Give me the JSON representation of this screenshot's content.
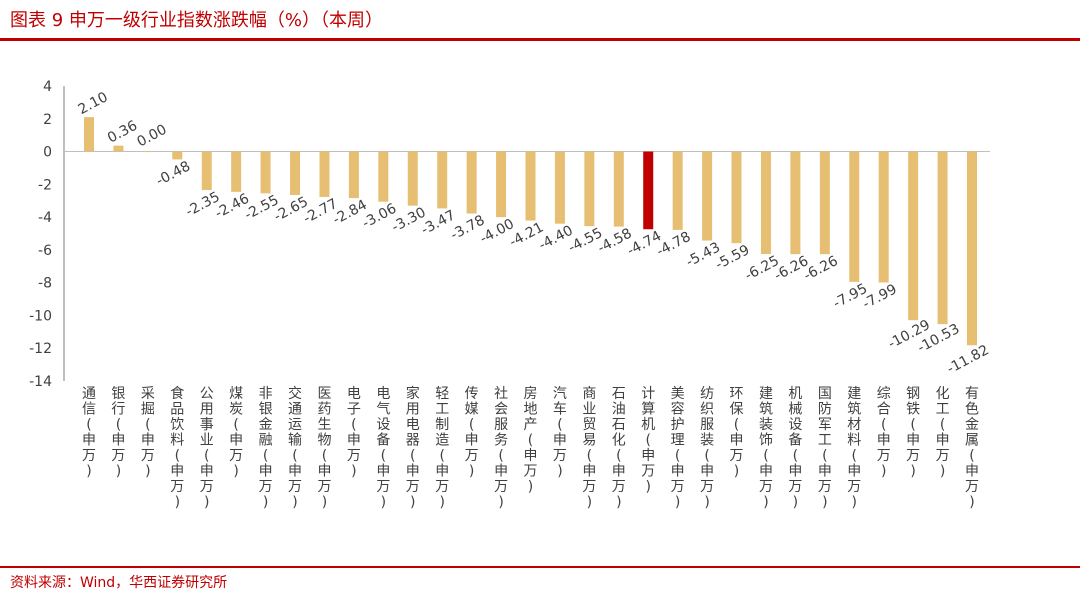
{
  "header": {
    "title": "图表 9 申万一级行业指数涨跌幅（%）（本周）"
  },
  "footer": {
    "source": "资料来源：Wind，华西证券研究所"
  },
  "colors": {
    "accent": "#c00000",
    "bar": "#e6bf73",
    "highlight": "#c00000",
    "axis": "#7f7f7f",
    "text": "#404040"
  },
  "chart_data": {
    "type": "bar",
    "title": "",
    "xlabel": "",
    "ylabel": "",
    "ylim": [
      -14,
      4
    ],
    "yticks": [
      "4",
      "2",
      "0",
      "-2",
      "-4",
      "-6",
      "-8",
      "-10",
      "-12",
      "-14"
    ],
    "grid": false,
    "legend": "none",
    "highlight_index": 19,
    "categories": [
      "通信(申万)",
      "银行(申万)",
      "采掘(申万)",
      "食品饮料(申万)",
      "公用事业(申万)",
      "煤炭(申万)",
      "非银金融(申万)",
      "交通运输(申万)",
      "医药生物(申万)",
      "电子(申万)",
      "电气设备(申万)",
      "家用电器(申万)",
      "轻工制造(申万)",
      "传媒(申万)",
      "社会服务(申万)",
      "房地产(申万)",
      "汽车(申万)",
      "商业贸易(申万)",
      "石油石化(申万)",
      "计算机(申万)",
      "美容护理(申万)",
      "纺织服装(申万)",
      "环保(申万)",
      "建筑装饰(申万)",
      "机械设备(申万)",
      "国防军工(申万)",
      "建筑材料(申万)",
      "综合(申万)",
      "钢铁(申万)",
      "化工(申万)",
      "有色金属(申万)"
    ],
    "values": [
      2.1,
      0.36,
      0.0,
      -0.48,
      -2.35,
      -2.46,
      -2.55,
      -2.65,
      -2.77,
      -2.84,
      -3.06,
      -3.3,
      -3.47,
      -3.78,
      -4.0,
      -4.21,
      -4.4,
      -4.55,
      -4.58,
      -4.74,
      -4.78,
      -5.43,
      -5.59,
      -6.25,
      -6.26,
      -6.26,
      -7.95,
      -7.99,
      -10.29,
      -10.53,
      -11.82
    ],
    "data_labels": [
      "2.10",
      "0.36",
      "0.00",
      "-0.48",
      "-2.35",
      "-2.46",
      "-2.55",
      "-2.65",
      "-2.77",
      "-2.84",
      "-3.06",
      "-3.30",
      "-3.47",
      "-3.78",
      "-4.00",
      "-4.21",
      "-4.40",
      "-4.55",
      "-4.58",
      "-4.74",
      "-4.78",
      "-5.43",
      "-5.59",
      "-6.25",
      "-6.26",
      "-6.26",
      "-7.95",
      "-7.99",
      "-10.29",
      "-10.53",
      "-11.82"
    ]
  }
}
